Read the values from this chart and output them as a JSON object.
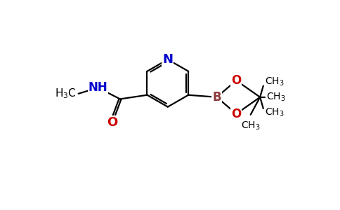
{
  "background_color": "#ffffff",
  "bond_color": "#000000",
  "N_color": "#0000cc",
  "O_color": "#cc0000",
  "B_color": "#8b3a3a",
  "C_color": "#000000",
  "figsize": [
    4.84,
    3.0
  ],
  "dpi": 100,
  "xlim": [
    0,
    9.68
  ],
  "ylim": [
    0,
    6.0
  ]
}
